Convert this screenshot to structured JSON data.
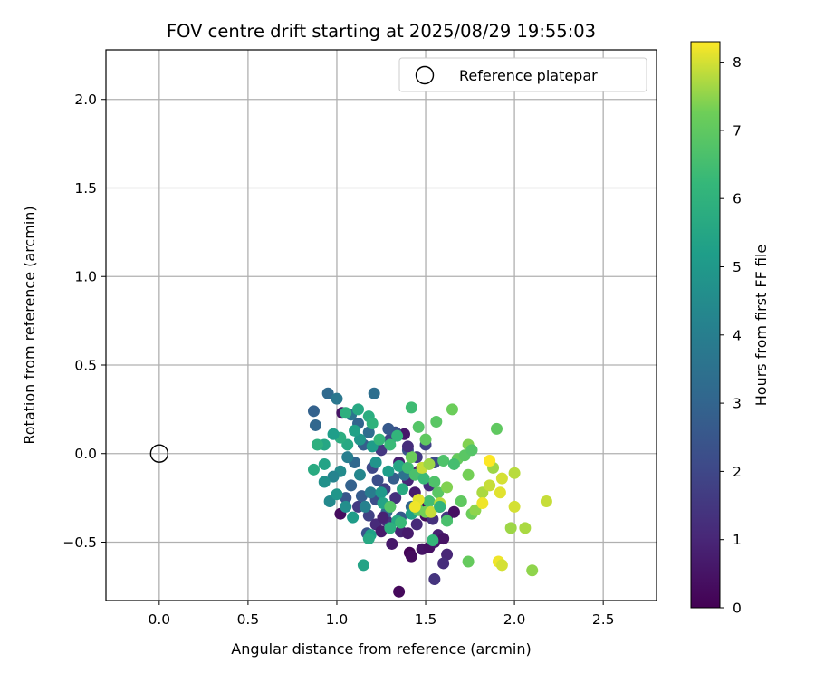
{
  "chart_data": {
    "type": "scatter",
    "title": "FOV centre drift starting at 2025/08/29 19:55:03",
    "xlabel": "Angular distance from reference (arcmin)",
    "ylabel": "Rotation from reference (arcmin)",
    "xlim": [
      -0.3,
      2.8
    ],
    "ylim": [
      -0.83,
      2.28
    ],
    "xticks": [
      0.0,
      0.5,
      1.0,
      1.5,
      2.0,
      2.5
    ],
    "xtick_labels": [
      "0.0",
      "0.5",
      "1.0",
      "1.5",
      "2.0",
      "2.5"
    ],
    "yticks": [
      -0.5,
      0.0,
      0.5,
      1.0,
      1.5,
      2.0
    ],
    "ytick_labels": [
      "−0.5",
      "0.0",
      "0.5",
      "1.0",
      "1.5",
      "2.0"
    ],
    "grid": true,
    "legend": {
      "position": "top-right",
      "entries": [
        "Reference platepar"
      ]
    },
    "reference_point": {
      "x": 0.0,
      "y": 0.0,
      "label": "Reference platepar"
    },
    "colorbar": {
      "label": "Hours from first FF file",
      "colormap": "viridis",
      "range": [
        0,
        8.3
      ],
      "ticks": [
        0,
        1,
        2,
        3,
        4,
        5,
        6,
        7,
        8
      ],
      "tick_labels": [
        "0",
        "1",
        "2",
        "3",
        "4",
        "5",
        "6",
        "7",
        "8"
      ]
    },
    "points": [
      {
        "x": 1.35,
        "y": -0.78,
        "h": 0.2
      },
      {
        "x": 1.41,
        "y": -0.56,
        "h": 0.1
      },
      {
        "x": 1.42,
        "y": -0.58,
        "h": 0.3
      },
      {
        "x": 1.48,
        "y": -0.54,
        "h": 0.5
      },
      {
        "x": 1.52,
        "y": -0.53,
        "h": 0.4
      },
      {
        "x": 1.55,
        "y": -0.5,
        "h": 0.6
      },
      {
        "x": 1.57,
        "y": -0.46,
        "h": 0.8
      },
      {
        "x": 1.6,
        "y": -0.48,
        "h": 0.5
      },
      {
        "x": 1.62,
        "y": -0.57,
        "h": 1.0
      },
      {
        "x": 1.6,
        "y": -0.62,
        "h": 1.2
      },
      {
        "x": 1.55,
        "y": -0.71,
        "h": 1.4
      },
      {
        "x": 1.31,
        "y": -0.51,
        "h": 0.6
      },
      {
        "x": 1.36,
        "y": -0.44,
        "h": 0.9
      },
      {
        "x": 1.4,
        "y": -0.45,
        "h": 0.7
      },
      {
        "x": 1.45,
        "y": -0.4,
        "h": 1.1
      },
      {
        "x": 1.5,
        "y": -0.35,
        "h": 0.3
      },
      {
        "x": 1.54,
        "y": -0.37,
        "h": 1.3
      },
      {
        "x": 1.58,
        "y": -0.3,
        "h": 0.9
      },
      {
        "x": 1.62,
        "y": -0.36,
        "h": 1.5
      },
      {
        "x": 1.66,
        "y": -0.33,
        "h": 0.4
      },
      {
        "x": 1.48,
        "y": -0.28,
        "h": 0.2
      },
      {
        "x": 1.44,
        "y": -0.22,
        "h": 0.7
      },
      {
        "x": 1.4,
        "y": -0.15,
        "h": 1.0
      },
      {
        "x": 1.46,
        "y": -0.1,
        "h": 0.5
      },
      {
        "x": 1.52,
        "y": -0.18,
        "h": 1.2
      },
      {
        "x": 1.35,
        "y": -0.05,
        "h": 0.8
      },
      {
        "x": 1.38,
        "y": 0.11,
        "h": 0.6
      },
      {
        "x": 1.03,
        "y": 0.23,
        "h": 0.5
      },
      {
        "x": 1.02,
        "y": -0.34,
        "h": 0.3
      },
      {
        "x": 1.12,
        "y": -0.3,
        "h": 1.6
      },
      {
        "x": 1.18,
        "y": -0.35,
        "h": 1.8
      },
      {
        "x": 1.22,
        "y": -0.4,
        "h": 1.1
      },
      {
        "x": 1.25,
        "y": -0.44,
        "h": 0.7
      },
      {
        "x": 1.28,
        "y": -0.38,
        "h": 1.4
      },
      {
        "x": 1.3,
        "y": -0.3,
        "h": 1.9
      },
      {
        "x": 1.33,
        "y": -0.25,
        "h": 1.3
      },
      {
        "x": 1.27,
        "y": -0.2,
        "h": 1.7
      },
      {
        "x": 1.23,
        "y": -0.15,
        "h": 2.2
      },
      {
        "x": 1.2,
        "y": -0.08,
        "h": 2.0
      },
      {
        "x": 1.25,
        "y": 0.02,
        "h": 1.5
      },
      {
        "x": 1.3,
        "y": 0.08,
        "h": 1.9
      },
      {
        "x": 1.33,
        "y": 0.12,
        "h": 2.3
      },
      {
        "x": 1.29,
        "y": 0.14,
        "h": 2.6
      },
      {
        "x": 1.17,
        "y": -0.45,
        "h": 2.4
      },
      {
        "x": 1.14,
        "y": -0.24,
        "h": 2.7
      },
      {
        "x": 1.08,
        "y": -0.18,
        "h": 2.9
      },
      {
        "x": 1.05,
        "y": -0.25,
        "h": 2.5
      },
      {
        "x": 1.1,
        "y": -0.05,
        "h": 3.1
      },
      {
        "x": 1.15,
        "y": 0.05,
        "h": 2.8
      },
      {
        "x": 1.18,
        "y": 0.12,
        "h": 3.3
      },
      {
        "x": 1.12,
        "y": 0.17,
        "h": 3.0
      },
      {
        "x": 1.08,
        "y": 0.22,
        "h": 3.6
      },
      {
        "x": 1.21,
        "y": 0.34,
        "h": 3.4
      },
      {
        "x": 0.95,
        "y": 0.34,
        "h": 3.2
      },
      {
        "x": 0.87,
        "y": 0.24,
        "h": 2.9
      },
      {
        "x": 0.88,
        "y": 0.16,
        "h": 3.1
      },
      {
        "x": 1.0,
        "y": 0.31,
        "h": 3.7
      },
      {
        "x": 1.38,
        "y": -0.12,
        "h": 3.5
      },
      {
        "x": 1.42,
        "y": -0.3,
        "h": 3.0
      },
      {
        "x": 1.36,
        "y": -0.36,
        "h": 2.6
      },
      {
        "x": 1.22,
        "y": -0.26,
        "h": 2.2
      },
      {
        "x": 1.45,
        "y": -0.02,
        "h": 1.6
      },
      {
        "x": 1.5,
        "y": 0.05,
        "h": 1.9
      },
      {
        "x": 1.55,
        "y": -0.05,
        "h": 2.1
      },
      {
        "x": 1.4,
        "y": 0.02,
        "h": 2.4
      },
      {
        "x": 1.32,
        "y": -0.14,
        "h": 2.8
      },
      {
        "x": 1.28,
        "y": -0.33,
        "h": 3.3
      },
      {
        "x": 1.19,
        "y": -0.22,
        "h": 3.9
      },
      {
        "x": 1.16,
        "y": -0.3,
        "h": 4.1
      },
      {
        "x": 1.13,
        "y": -0.12,
        "h": 4.3
      },
      {
        "x": 1.06,
        "y": -0.02,
        "h": 4.0
      },
      {
        "x": 1.02,
        "y": -0.1,
        "h": 4.5
      },
      {
        "x": 0.98,
        "y": -0.13,
        "h": 4.2
      },
      {
        "x": 0.93,
        "y": -0.16,
        "h": 4.7
      },
      {
        "x": 0.96,
        "y": -0.27,
        "h": 4.4
      },
      {
        "x": 1.0,
        "y": -0.23,
        "h": 4.9
      },
      {
        "x": 1.05,
        "y": -0.3,
        "h": 4.6
      },
      {
        "x": 1.09,
        "y": -0.36,
        "h": 5.1
      },
      {
        "x": 1.19,
        "y": -0.46,
        "h": 5.3
      },
      {
        "x": 1.18,
        "y": -0.48,
        "h": 5.6
      },
      {
        "x": 1.15,
        "y": -0.63,
        "h": 5.4
      },
      {
        "x": 1.25,
        "y": -0.22,
        "h": 5.0
      },
      {
        "x": 1.29,
        "y": -0.1,
        "h": 5.2
      },
      {
        "x": 1.35,
        "y": -0.07,
        "h": 5.5
      },
      {
        "x": 1.37,
        "y": -0.2,
        "h": 5.7
      },
      {
        "x": 1.42,
        "y": -0.34,
        "h": 5.3
      },
      {
        "x": 1.34,
        "y": -0.38,
        "h": 5.6
      },
      {
        "x": 1.3,
        "y": -0.42,
        "h": 5.9
      },
      {
        "x": 1.26,
        "y": -0.28,
        "h": 5.4
      },
      {
        "x": 1.22,
        "y": -0.05,
        "h": 4.8
      },
      {
        "x": 1.2,
        "y": 0.04,
        "h": 5.1
      },
      {
        "x": 1.13,
        "y": 0.08,
        "h": 4.9
      },
      {
        "x": 1.1,
        "y": 0.13,
        "h": 5.3
      },
      {
        "x": 1.06,
        "y": 0.05,
        "h": 5.6
      },
      {
        "x": 1.02,
        "y": 0.09,
        "h": 5.8
      },
      {
        "x": 0.98,
        "y": 0.11,
        "h": 5.2
      },
      {
        "x": 0.93,
        "y": 0.05,
        "h": 5.5
      },
      {
        "x": 0.89,
        "y": 0.05,
        "h": 5.9
      },
      {
        "x": 0.87,
        "y": -0.09,
        "h": 5.7
      },
      {
        "x": 0.93,
        "y": -0.06,
        "h": 5.4
      },
      {
        "x": 1.05,
        "y": 0.23,
        "h": 5.9
      },
      {
        "x": 1.12,
        "y": 0.25,
        "h": 5.6
      },
      {
        "x": 1.18,
        "y": 0.21,
        "h": 5.8
      },
      {
        "x": 1.2,
        "y": 0.17,
        "h": 6.0
      },
      {
        "x": 1.24,
        "y": 0.08,
        "h": 6.2
      },
      {
        "x": 1.3,
        "y": 0.05,
        "h": 6.3
      },
      {
        "x": 1.34,
        "y": 0.1,
        "h": 6.1
      },
      {
        "x": 1.4,
        "y": -0.08,
        "h": 6.4
      },
      {
        "x": 1.44,
        "y": -0.12,
        "h": 6.6
      },
      {
        "x": 1.49,
        "y": -0.14,
        "h": 6.3
      },
      {
        "x": 1.52,
        "y": -0.27,
        "h": 6.5
      },
      {
        "x": 1.55,
        "y": -0.16,
        "h": 6.7
      },
      {
        "x": 1.57,
        "y": -0.22,
        "h": 6.9
      },
      {
        "x": 1.62,
        "y": -0.38,
        "h": 6.6
      },
      {
        "x": 1.54,
        "y": -0.49,
        "h": 6.2
      },
      {
        "x": 1.3,
        "y": -0.3,
        "h": 6.8
      },
      {
        "x": 1.36,
        "y": -0.39,
        "h": 6.3
      },
      {
        "x": 1.46,
        "y": -0.32,
        "h": 7.0
      },
      {
        "x": 1.5,
        "y": -0.33,
        "h": 7.3
      },
      {
        "x": 1.42,
        "y": 0.26,
        "h": 6.4
      },
      {
        "x": 1.46,
        "y": 0.15,
        "h": 6.8
      },
      {
        "x": 1.5,
        "y": 0.08,
        "h": 7.0
      },
      {
        "x": 1.56,
        "y": 0.18,
        "h": 6.9
      },
      {
        "x": 1.6,
        "y": -0.04,
        "h": 6.7
      },
      {
        "x": 1.65,
        "y": 0.25,
        "h": 7.2
      },
      {
        "x": 1.68,
        "y": -0.03,
        "h": 7.1
      },
      {
        "x": 1.72,
        "y": -0.01,
        "h": 6.9
      },
      {
        "x": 1.74,
        "y": 0.05,
        "h": 7.4
      },
      {
        "x": 1.76,
        "y": 0.02,
        "h": 6.8
      },
      {
        "x": 1.74,
        "y": -0.12,
        "h": 7.3
      },
      {
        "x": 1.7,
        "y": -0.27,
        "h": 7.0
      },
      {
        "x": 1.76,
        "y": -0.34,
        "h": 7.2
      },
      {
        "x": 1.78,
        "y": -0.32,
        "h": 7.5
      },
      {
        "x": 1.74,
        "y": -0.61,
        "h": 7.1
      },
      {
        "x": 1.82,
        "y": -0.22,
        "h": 7.7
      },
      {
        "x": 1.86,
        "y": -0.18,
        "h": 7.9
      },
      {
        "x": 1.88,
        "y": -0.08,
        "h": 7.6
      },
      {
        "x": 1.9,
        "y": 0.14,
        "h": 7.0
      },
      {
        "x": 1.92,
        "y": -0.22,
        "h": 8.1
      },
      {
        "x": 1.93,
        "y": -0.14,
        "h": 8.0
      },
      {
        "x": 1.98,
        "y": -0.42,
        "h": 7.6
      },
      {
        "x": 2.0,
        "y": -0.11,
        "h": 7.8
      },
      {
        "x": 2.0,
        "y": -0.3,
        "h": 8.0
      },
      {
        "x": 1.91,
        "y": -0.61,
        "h": 8.2
      },
      {
        "x": 1.93,
        "y": -0.63,
        "h": 8.0
      },
      {
        "x": 2.06,
        "y": -0.42,
        "h": 7.7
      },
      {
        "x": 2.1,
        "y": -0.66,
        "h": 7.5
      },
      {
        "x": 2.18,
        "y": -0.27,
        "h": 7.9
      },
      {
        "x": 1.86,
        "y": -0.04,
        "h": 8.3
      },
      {
        "x": 1.82,
        "y": -0.28,
        "h": 8.2
      },
      {
        "x": 1.58,
        "y": -0.28,
        "h": 7.8
      },
      {
        "x": 1.53,
        "y": -0.33,
        "h": 7.9
      },
      {
        "x": 1.46,
        "y": -0.26,
        "h": 8.1
      },
      {
        "x": 1.44,
        "y": -0.3,
        "h": 8.2
      },
      {
        "x": 1.48,
        "y": -0.08,
        "h": 7.9
      },
      {
        "x": 1.52,
        "y": -0.06,
        "h": 7.6
      },
      {
        "x": 1.58,
        "y": -0.3,
        "h": 6.0
      },
      {
        "x": 1.62,
        "y": -0.19,
        "h": 7.4
      },
      {
        "x": 1.42,
        "y": -0.02,
        "h": 7.2
      },
      {
        "x": 1.66,
        "y": -0.06,
        "h": 6.5
      },
      {
        "x": 1.4,
        "y": 0.04,
        "h": 1.2
      },
      {
        "x": 1.26,
        "y": -0.36,
        "h": 0.9
      }
    ]
  }
}
